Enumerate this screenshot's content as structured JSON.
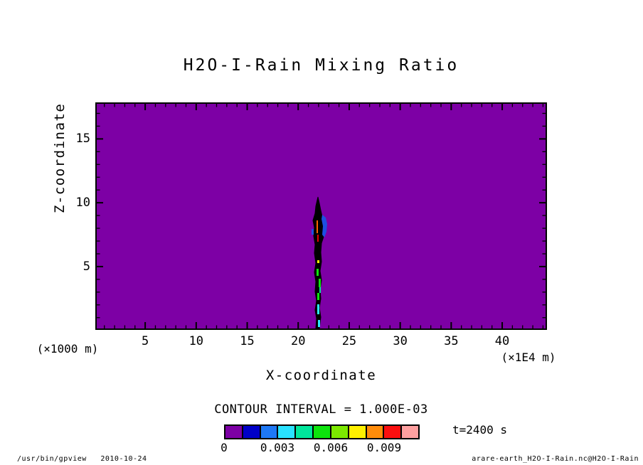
{
  "title": "H2O-I-Rain Mixing Ratio",
  "axes": {
    "x": {
      "label": "X-coordinate",
      "units": "(×1E4 m)",
      "ticks": [
        5,
        10,
        15,
        20,
        25,
        30,
        35,
        40
      ],
      "min": 0.25,
      "max": 44.25,
      "minor_step": 1
    },
    "y": {
      "label": "Z-coordinate",
      "units": "(×1000 m)",
      "ticks": [
        5,
        10,
        15
      ],
      "min": 0.15,
      "max": 17.75,
      "minor_step": 1
    }
  },
  "contour_info": "CONTOUR INTERVAL = 1.000E-03",
  "time_label": "t=2400 s",
  "colorbar": {
    "labels": [
      "0",
      "0.003",
      "0.006",
      "0.009"
    ],
    "label_boundary_index": [
      0,
      3,
      6,
      9
    ],
    "colors": [
      "#7D00A5",
      "#0000C8",
      "#1E78F5",
      "#29E2FF",
      "#00E69B",
      "#0DE30D",
      "#7CE800",
      "#FFF000",
      "#FF8C0A",
      "#FA0F0F",
      "#FFA0A0"
    ]
  },
  "footer": {
    "left": "/usr/bin/gpview   2010-10-24",
    "right": "arare-earth_H2O-I-Rain.nc@H2O-I-Rain"
  },
  "chart_data": {
    "type": "heatmap",
    "subtype": "filled-contour (tone) with contour lines",
    "title": "H2O-I-Rain Mixing Ratio",
    "xlabel": "X-coordinate (×1E4 m)",
    "ylabel": "Z-coordinate (×1000 m)",
    "xlim": [
      0.25,
      44.25
    ],
    "ylim": [
      0.15,
      17.75
    ],
    "xticks": [
      5,
      10,
      15,
      20,
      25,
      30,
      35,
      40
    ],
    "yticks": [
      5,
      10,
      15
    ],
    "grid": false,
    "legend_position": "bottom colorbar",
    "contour_interval": 0.001,
    "colorbar_boundary_values": [
      0,
      0.001,
      0.002,
      0.003,
      0.004,
      0.005,
      0.006,
      0.007,
      0.008,
      0.009,
      0.01,
      0.011
    ],
    "colorbar_labeled_values": [
      0,
      0.003,
      0.006,
      0.009
    ],
    "background_field_value": 0,
    "background_fill_color": "#7D00A5",
    "time": "t=2400 s",
    "feature": {
      "description": "Field is ~0 (lowest tone bin, purple) everywhere except one narrow rain shaft of tightly packed contours",
      "x_center": 22.2,
      "x_half_width": 0.5,
      "z_base": 0.15,
      "z_top": 10.3,
      "max_level_exceeded": 0.009
    }
  }
}
